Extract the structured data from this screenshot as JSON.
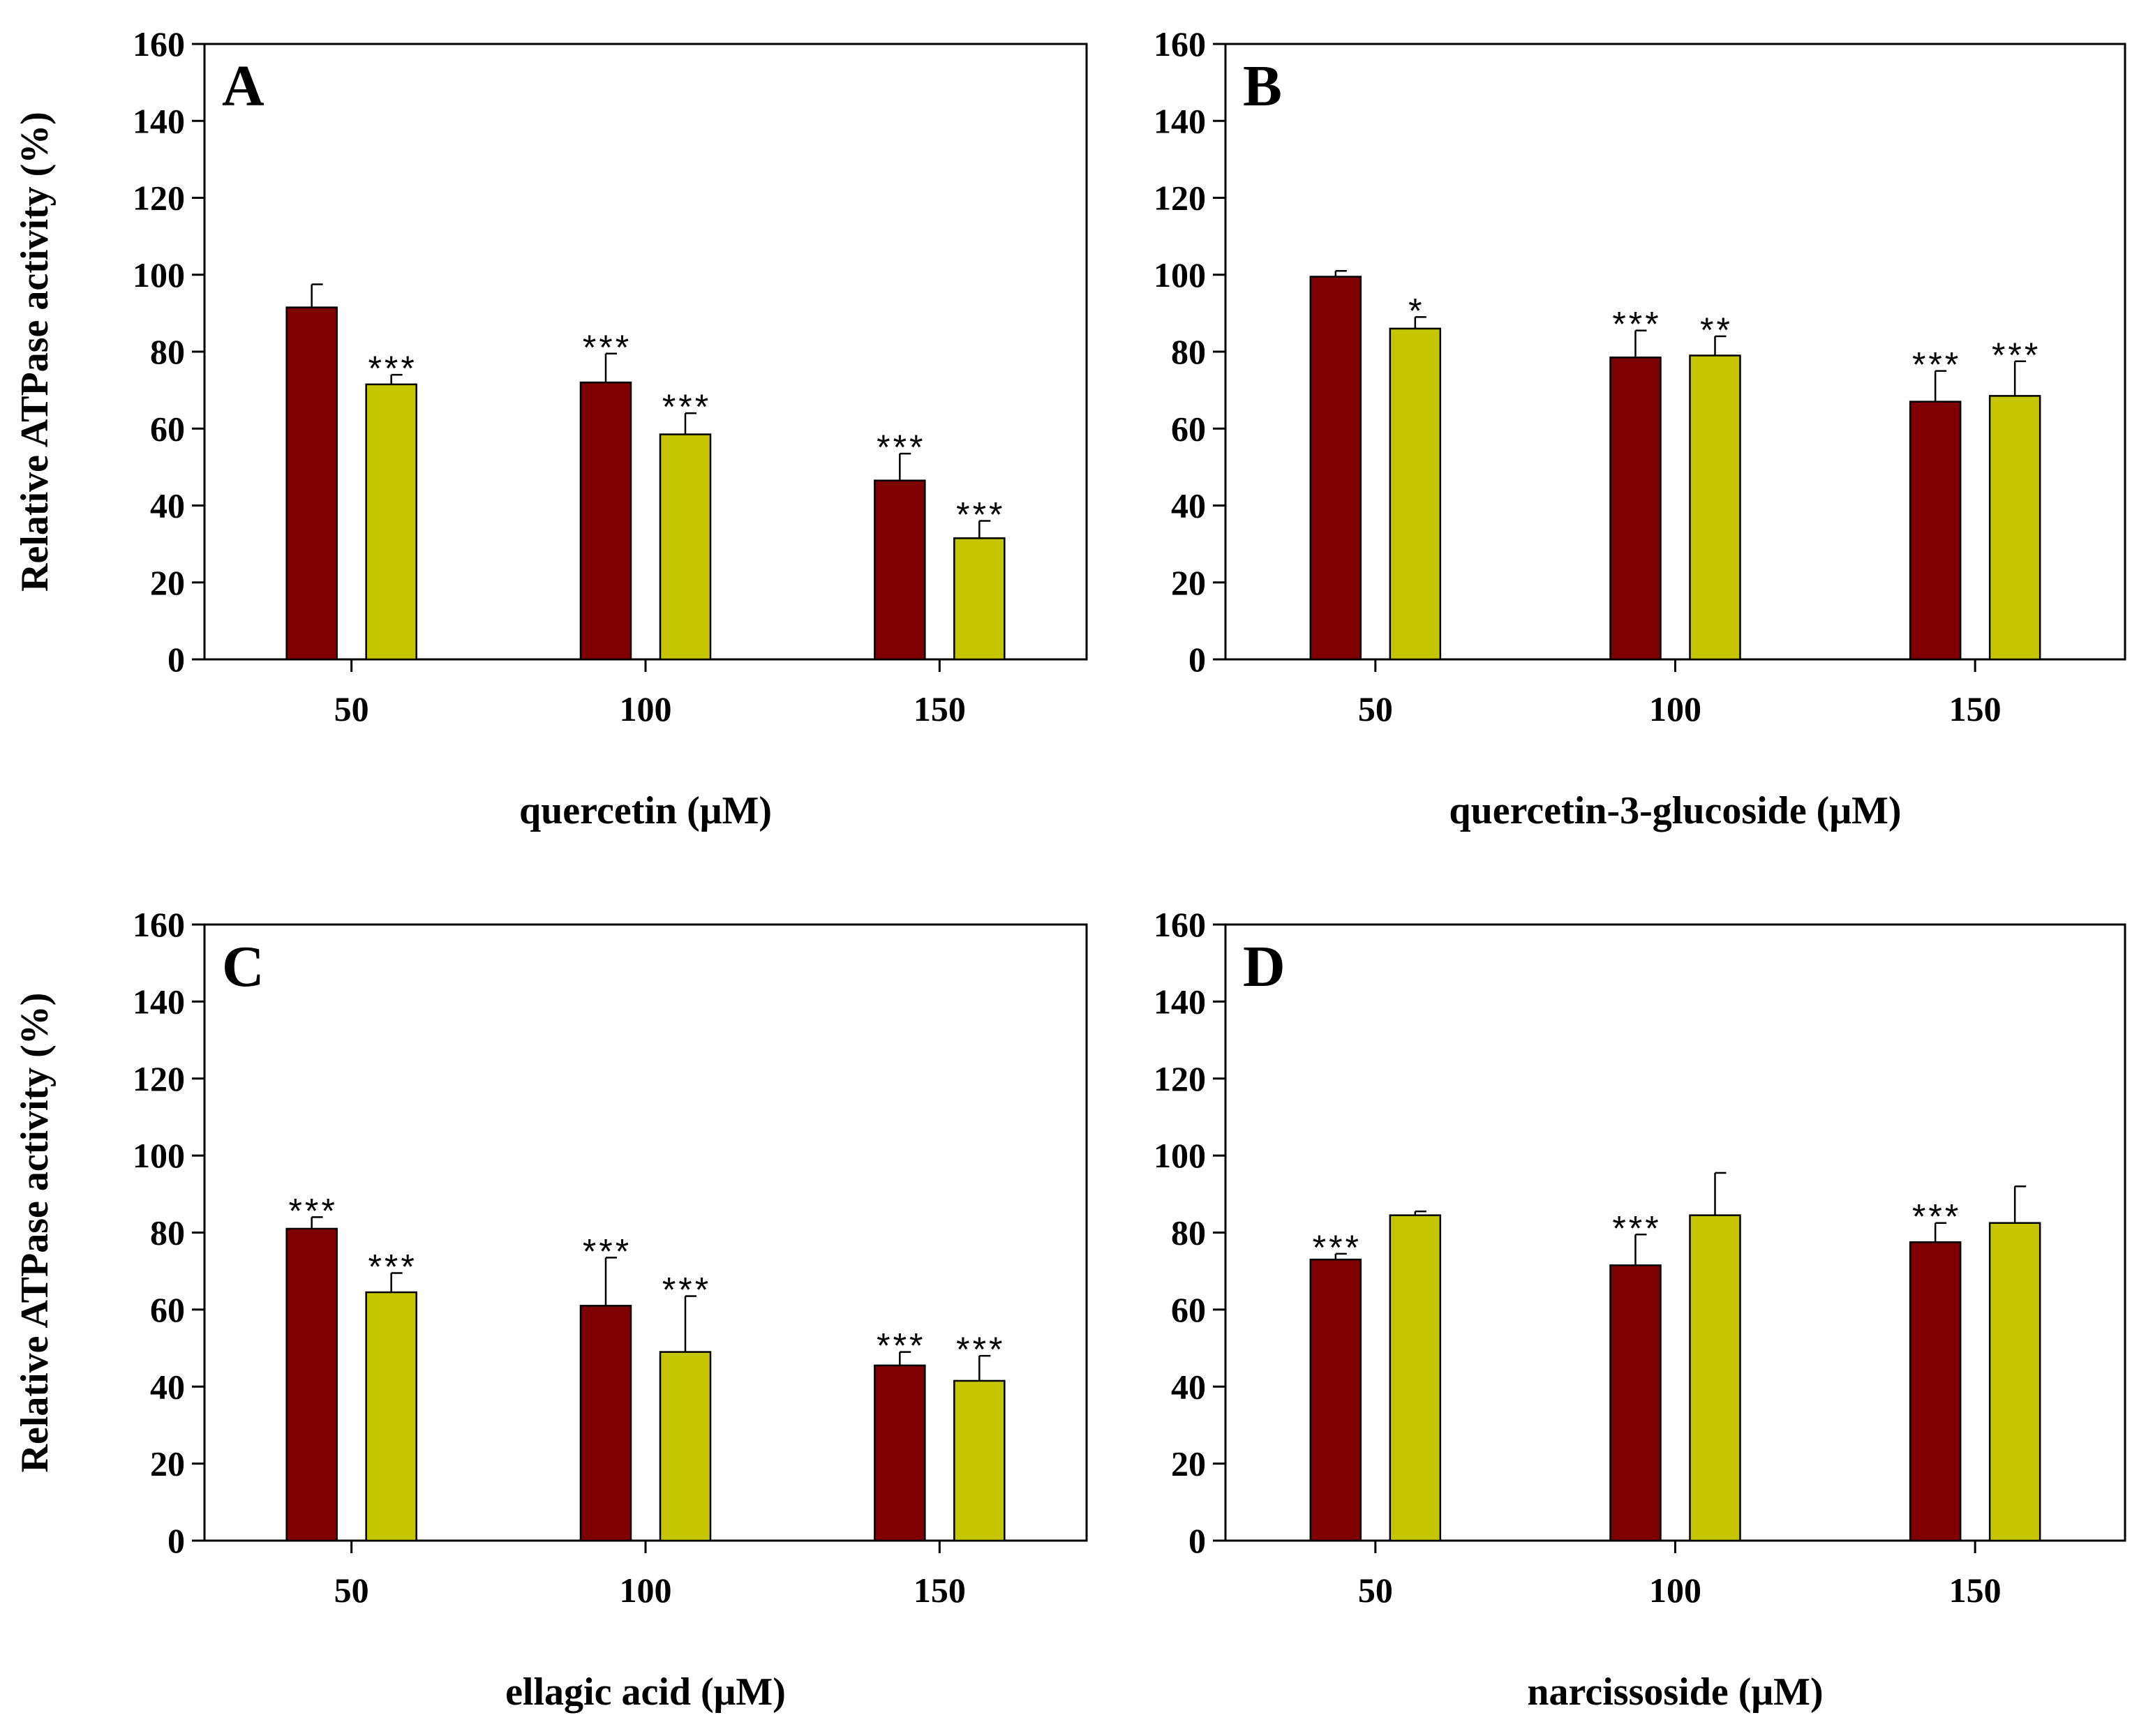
{
  "colors": {
    "series1": "#7f0000",
    "series2": "#c6c600",
    "axis": "#000000"
  },
  "chart_data": [
    {
      "type": "bar",
      "panel": "A",
      "title": "",
      "xlabel": "quercetin (μM)",
      "ylabel": "Relative ATPase activity (%)",
      "categories": [
        "50",
        "100",
        "150"
      ],
      "ylim": [
        0,
        160
      ],
      "yticks": [
        "0",
        "20",
        "40",
        "60",
        "80",
        "100",
        "120",
        "140",
        "160"
      ],
      "series": [
        {
          "name": "series 1",
          "values": [
            91.5,
            72,
            46.5
          ],
          "errors": [
            6,
            7.5,
            7
          ],
          "significance": [
            "",
            "***",
            "***"
          ]
        },
        {
          "name": "series 2",
          "values": [
            71.5,
            58.5,
            31.5
          ],
          "errors": [
            2.5,
            5.5,
            4.5
          ],
          "significance": [
            "***",
            "***",
            "***"
          ]
        }
      ]
    },
    {
      "type": "bar",
      "panel": "B",
      "title": "",
      "xlabel": "quercetin-3-glucoside (μM)",
      "ylabel": "",
      "categories": [
        "50",
        "100",
        "150"
      ],
      "ylim": [
        0,
        160
      ],
      "yticks": [
        "0",
        "20",
        "40",
        "60",
        "80",
        "100",
        "120",
        "140",
        "160"
      ],
      "series": [
        {
          "name": "series 1",
          "values": [
            99.5,
            78.5,
            67
          ],
          "errors": [
            1.5,
            7,
            8
          ],
          "significance": [
            "",
            "***",
            "***"
          ]
        },
        {
          "name": "series 2",
          "values": [
            86,
            79,
            68.5
          ],
          "errors": [
            3,
            5,
            9
          ],
          "significance": [
            "*",
            "**",
            "***"
          ]
        }
      ]
    },
    {
      "type": "bar",
      "panel": "C",
      "title": "",
      "xlabel": "ellagic acid (μM)",
      "ylabel": "Relative ATPase activity (%)",
      "categories": [
        "50",
        "100",
        "150"
      ],
      "ylim": [
        0,
        160
      ],
      "yticks": [
        "0",
        "20",
        "40",
        "60",
        "80",
        "100",
        "120",
        "140",
        "160"
      ],
      "series": [
        {
          "name": "series 1",
          "values": [
            81,
            61,
            45.5
          ],
          "errors": [
            3,
            12.5,
            3.5
          ],
          "significance": [
            "***",
            "***",
            "***"
          ]
        },
        {
          "name": "series 2",
          "values": [
            64.5,
            49,
            41.5
          ],
          "errors": [
            5,
            14.5,
            6.5
          ],
          "significance": [
            "***",
            "***",
            "***"
          ]
        }
      ]
    },
    {
      "type": "bar",
      "panel": "D",
      "title": "",
      "xlabel": "narcissoside (μM)",
      "ylabel": "",
      "categories": [
        "50",
        "100",
        "150"
      ],
      "ylim": [
        0,
        160
      ],
      "yticks": [
        "0",
        "20",
        "40",
        "60",
        "80",
        "100",
        "120",
        "140",
        "160"
      ],
      "series": [
        {
          "name": "series 1",
          "values": [
            73,
            71.5,
            77.5
          ],
          "errors": [
            1.5,
            8,
            5
          ],
          "significance": [
            "***",
            "***",
            "***"
          ]
        },
        {
          "name": "series 2",
          "values": [
            84.5,
            84.5,
            82.5
          ],
          "errors": [
            1,
            11,
            9.5
          ],
          "significance": [
            "",
            "",
            ""
          ]
        }
      ]
    }
  ]
}
